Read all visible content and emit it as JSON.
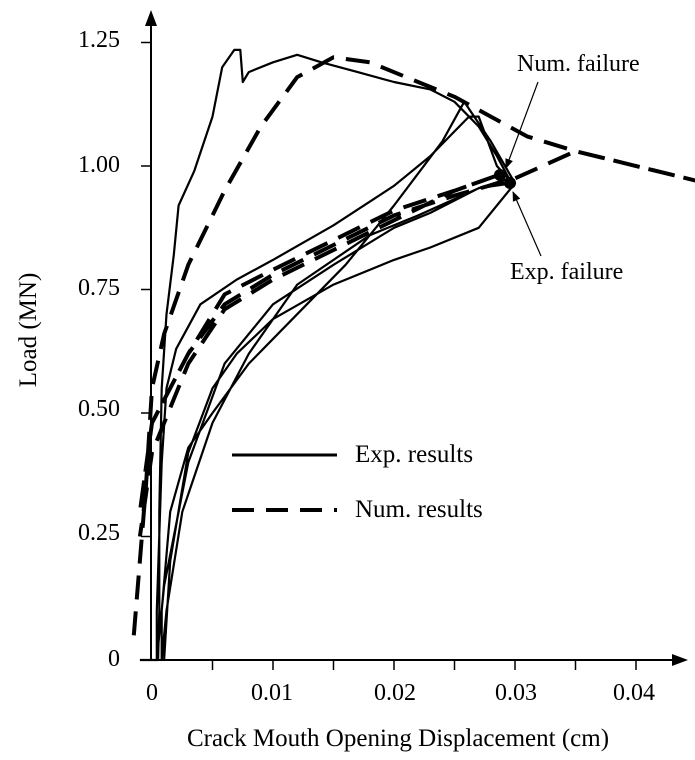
{
  "chart_data": {
    "type": "line",
    "title": "",
    "xlabel": "Crack Mouth Opening Displacement (cm)",
    "ylabel": "Load (MN)",
    "xlim": [
      -0.0015,
      0.045
    ],
    "ylim": [
      0,
      1.25
    ],
    "x_tick_labels": [
      "0",
      "0.01",
      "0.02",
      "0.03",
      "0.04"
    ],
    "y_tick_labels": [
      "0",
      "0.25",
      "0.50",
      "0.75",
      "1.00",
      "1.25"
    ],
    "legend_position": "center",
    "annotations": [
      {
        "text": "Num. failure",
        "x": 0.0295,
        "y": 0.985
      },
      {
        "text": "Exp. failure",
        "x": 0.03,
        "y": 0.965
      }
    ],
    "series": [
      {
        "name": "Exp. results",
        "style": "solid",
        "color": "#000000",
        "points": [
          [
            -0.001,
            0.0
          ],
          [
            0.0,
            0.0
          ],
          [
            0.0005,
            0.0
          ],
          [
            0.0006,
            0.1
          ],
          [
            0.0006,
            0.3
          ],
          [
            0.0008,
            0.55
          ],
          [
            0.0012,
            0.7
          ],
          [
            0.0018,
            0.82
          ],
          [
            0.0022,
            0.92
          ],
          [
            0.0035,
            0.99
          ],
          [
            0.005,
            1.1
          ],
          [
            0.0058,
            1.2
          ],
          [
            0.0068,
            1.235
          ],
          [
            0.0073,
            1.235
          ],
          [
            0.0075,
            1.17
          ],
          [
            0.008,
            1.19
          ],
          [
            0.01,
            1.21
          ],
          [
            0.012,
            1.225
          ],
          [
            0.014,
            1.21
          ],
          [
            0.017,
            1.19
          ],
          [
            0.02,
            1.17
          ],
          [
            0.023,
            1.155
          ],
          [
            0.025,
            1.13
          ],
          [
            0.027,
            1.08
          ],
          [
            0.0285,
            1.02
          ],
          [
            0.0295,
            0.975
          ],
          [
            0.027,
            0.955
          ],
          [
            0.023,
            0.905
          ],
          [
            0.02,
            0.875
          ],
          [
            0.015,
            0.8
          ],
          [
            0.01,
            0.72
          ],
          [
            0.006,
            0.6
          ],
          [
            0.003,
            0.4
          ],
          [
            0.001,
            0.15
          ],
          [
            0.0004,
            0.0
          ],
          [
            0.0004,
            0.1
          ],
          [
            0.0008,
            0.4
          ],
          [
            0.0012,
            0.55
          ],
          [
            0.002,
            0.63
          ],
          [
            0.004,
            0.72
          ],
          [
            0.007,
            0.77
          ],
          [
            0.01,
            0.81
          ],
          [
            0.015,
            0.88
          ],
          [
            0.02,
            0.96
          ],
          [
            0.023,
            1.02
          ],
          [
            0.025,
            1.07
          ],
          [
            0.0262,
            1.1
          ],
          [
            0.027,
            1.1
          ],
          [
            0.0285,
            1.0
          ],
          [
            0.0298,
            0.965
          ],
          [
            0.027,
            0.955
          ],
          [
            0.022,
            0.9
          ],
          [
            0.018,
            0.86
          ],
          [
            0.012,
            0.76
          ],
          [
            0.008,
            0.62
          ],
          [
            0.005,
            0.48
          ],
          [
            0.0025,
            0.3
          ],
          [
            0.0012,
            0.1
          ],
          [
            0.0008,
            0.0
          ],
          [
            0.0008,
            0.1
          ],
          [
            0.0015,
            0.3
          ],
          [
            0.003,
            0.43
          ],
          [
            0.005,
            0.5
          ],
          [
            0.008,
            0.6
          ],
          [
            0.012,
            0.7
          ],
          [
            0.016,
            0.8
          ],
          [
            0.02,
            0.92
          ],
          [
            0.024,
            1.05
          ],
          [
            0.0258,
            1.13
          ],
          [
            0.028,
            1.05
          ],
          [
            0.03,
            0.965
          ],
          [
            0.027,
            0.875
          ],
          [
            0.023,
            0.835
          ],
          [
            0.02,
            0.81
          ],
          [
            0.015,
            0.76
          ],
          [
            0.01,
            0.69
          ],
          [
            0.007,
            0.62
          ],
          [
            0.005,
            0.55
          ],
          [
            0.003,
            0.42
          ],
          [
            0.0015,
            0.2
          ],
          [
            0.001,
            0.0
          ]
        ]
      },
      {
        "name": "Num. results",
        "style": "dashed",
        "color": "#000000",
        "points": [
          [
            -0.0015,
            0.05
          ],
          [
            -0.0005,
            0.35
          ],
          [
            0.0,
            0.55
          ],
          [
            0.001,
            0.66
          ],
          [
            0.003,
            0.8
          ],
          [
            0.006,
            0.95
          ],
          [
            0.009,
            1.08
          ],
          [
            0.012,
            1.18
          ],
          [
            0.015,
            1.22
          ],
          [
            0.018,
            1.21
          ],
          [
            0.021,
            1.18
          ],
          [
            0.025,
            1.14
          ],
          [
            0.028,
            1.1
          ],
          [
            0.031,
            1.06
          ],
          [
            0.035,
            1.03
          ],
          [
            0.04,
            1.0
          ],
          [
            0.045,
            0.97
          ],
          [
            0.035,
            1.03
          ],
          [
            0.03,
            0.975
          ],
          [
            0.025,
            0.94
          ],
          [
            0.02,
            0.9
          ],
          [
            0.015,
            0.84
          ],
          [
            0.01,
            0.78
          ],
          [
            0.006,
            0.72
          ],
          [
            0.003,
            0.62
          ],
          [
            0.0,
            0.48
          ],
          [
            -0.001,
            0.3
          ],
          [
            0.0,
            0.48
          ],
          [
            0.003,
            0.62
          ],
          [
            0.006,
            0.74
          ],
          [
            0.01,
            0.79
          ],
          [
            0.015,
            0.85
          ],
          [
            0.02,
            0.91
          ],
          [
            0.025,
            0.95
          ],
          [
            0.029,
            0.985
          ],
          [
            0.025,
            0.95
          ],
          [
            0.02,
            0.89
          ],
          [
            0.015,
            0.83
          ],
          [
            0.01,
            0.77
          ],
          [
            0.006,
            0.71
          ],
          [
            0.003,
            0.6
          ],
          [
            0.0,
            0.42
          ],
          [
            -0.001,
            0.25
          ]
        ]
      }
    ]
  }
}
